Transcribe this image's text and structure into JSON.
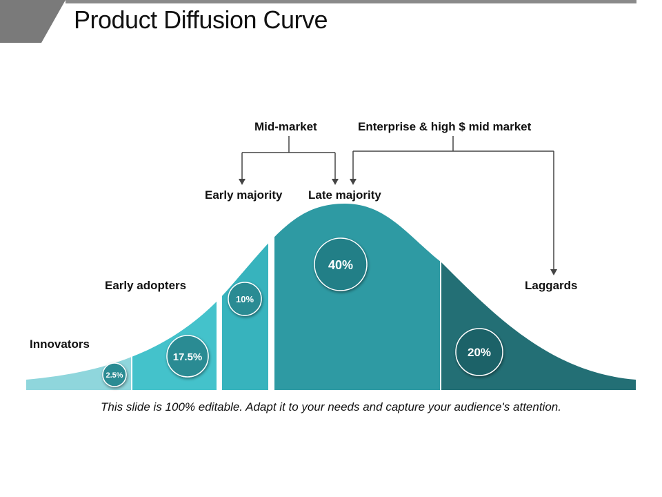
{
  "title": "Product Diffusion Curve",
  "footer": "This slide is 100% editable. Adapt it to your needs and capture your audience's attention.",
  "markets": {
    "mid_market": "Mid-market",
    "enterprise": "Enterprise & high $ mid market"
  },
  "segments": [
    {
      "label": "Innovators",
      "percent": "2.5%",
      "color": "#8fd6dc"
    },
    {
      "label": "Early adopters",
      "percent": "17.5%",
      "color": "#44c2cb"
    },
    {
      "label": "Early majority",
      "percent": "10%",
      "color": "#37b3bd"
    },
    {
      "label": "Late majority",
      "percent": "40%",
      "color": "#2e9aa3"
    },
    {
      "label": "Laggards",
      "percent": "20%",
      "color": "#236f75"
    }
  ]
}
